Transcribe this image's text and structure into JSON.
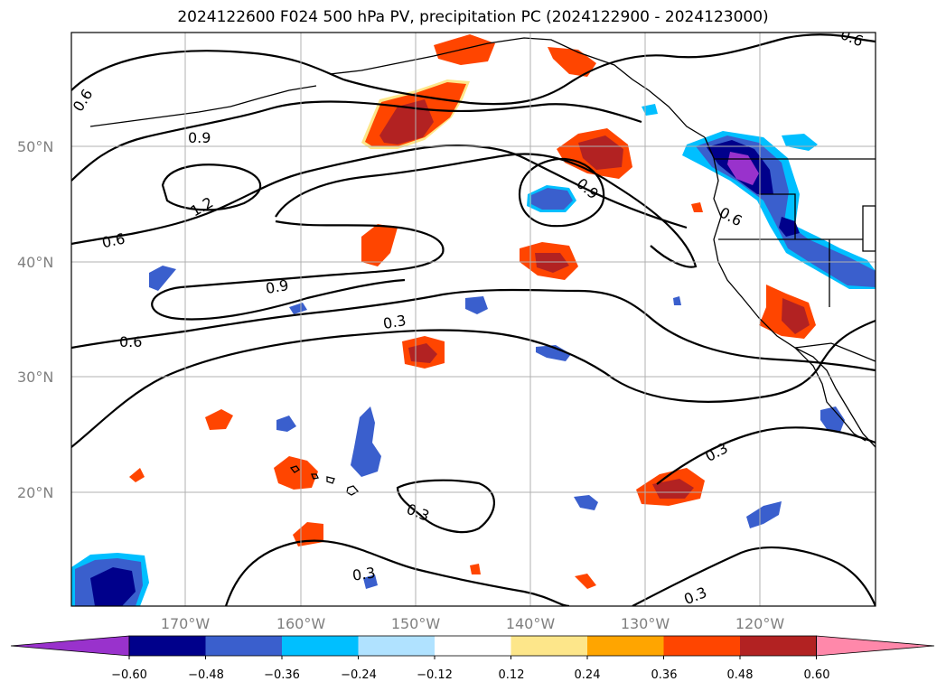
{
  "title": "2024122600 F024 500 hPa PV, precipitation PC (2024122900 - 2024123000)",
  "map": {
    "latitude_labels": [
      "50°N",
      "40°N",
      "30°N",
      "20°N"
    ],
    "longitude_labels": [
      "170°W",
      "160°W",
      "150°W",
      "140°W",
      "130°W",
      "120°W"
    ],
    "contour_labels": [
      {
        "text": "0.6",
        "name": "contour-label-0.6-nw"
      },
      {
        "text": "0.9",
        "name": "contour-label-0.9-a"
      },
      {
        "text": "1.2",
        "name": "contour-label-1.2"
      },
      {
        "text": "0.6",
        "name": "contour-label-0.6-w"
      },
      {
        "text": "0.9",
        "name": "contour-label-0.9-b"
      },
      {
        "text": "0.6",
        "name": "contour-label-0.6-sw"
      },
      {
        "text": "0.3",
        "name": "contour-label-0.3-a"
      },
      {
        "text": "0.9",
        "name": "contour-label-0.9-c"
      },
      {
        "text": "0.6",
        "name": "contour-label-0.6-coast"
      },
      {
        "text": "0.6",
        "name": "contour-label-0.6-ne"
      },
      {
        "text": "0.3",
        "name": "contour-label-0.3-b"
      },
      {
        "text": "0.3",
        "name": "contour-label-0.3-c"
      },
      {
        "text": "0.3",
        "name": "contour-label-0.3-d"
      },
      {
        "text": "0.3",
        "name": "contour-label-0.3-e"
      }
    ]
  },
  "colorbar": {
    "ticks": [
      "−0.60",
      "−0.48",
      "−0.36",
      "−0.24",
      "−0.12",
      "0.12",
      "0.24",
      "0.36",
      "0.48",
      "0.60"
    ],
    "colors": [
      "#9932cc",
      "#00008b",
      "#3a5fcd",
      "#00bfff",
      "#b0e2ff",
      "#ffffff",
      "#fde68a",
      "#ffa500",
      "#ff4500",
      "#b22222",
      "#ff88aa"
    ]
  }
}
